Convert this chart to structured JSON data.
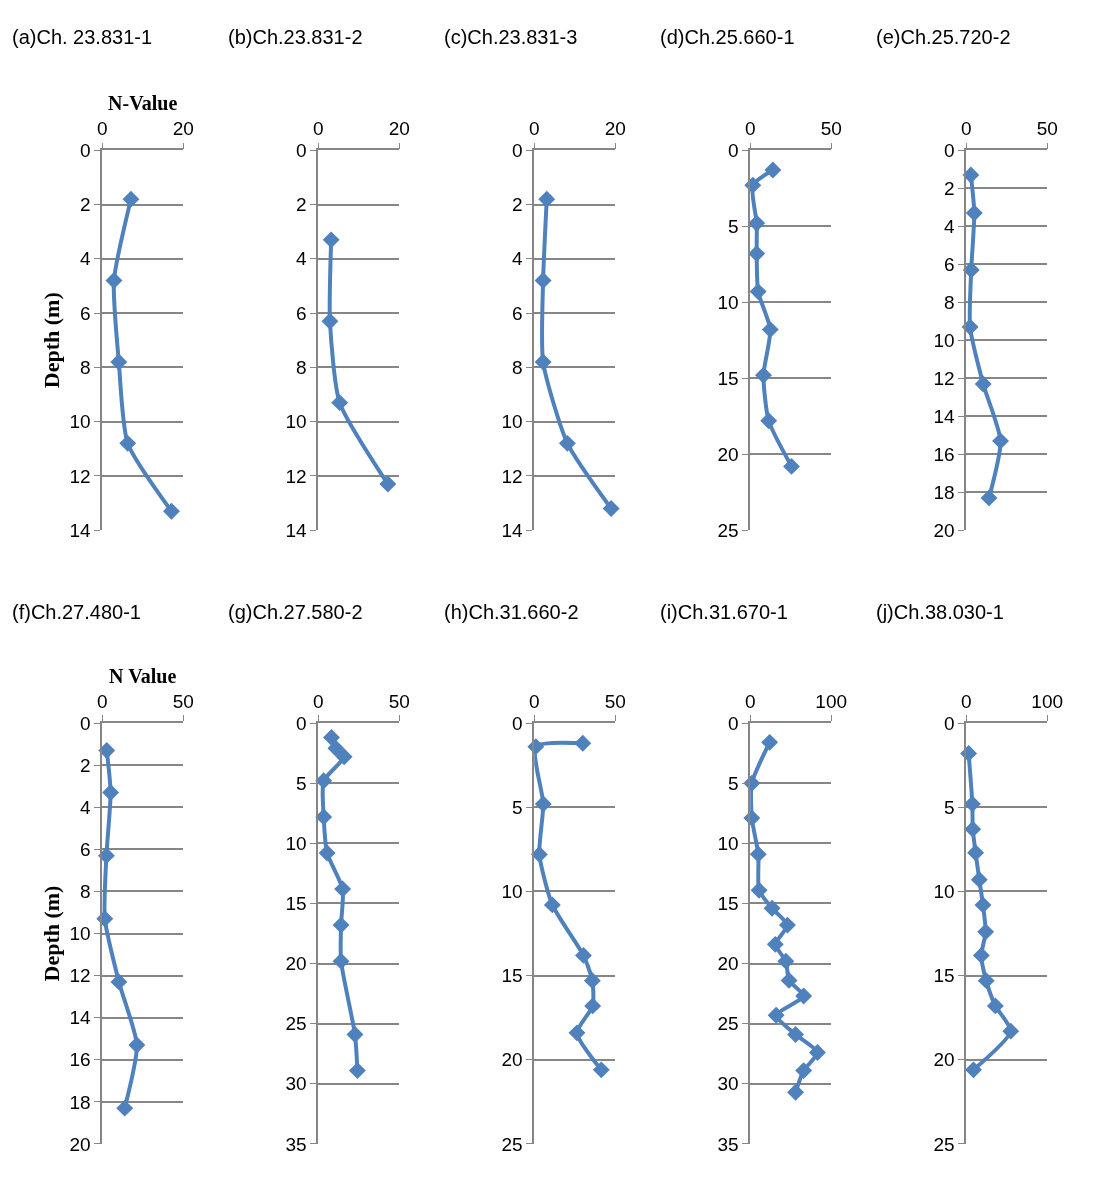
{
  "chart_data": [
    {
      "type": "line",
      "title": "(a)Ch. 23.831-1",
      "xlabel": "N-Value",
      "ylabel": "Depth (m)",
      "xlim": [
        0,
        20
      ],
      "xticks": [
        0,
        20
      ],
      "ylim": [
        14,
        0
      ],
      "yticks": [
        0,
        2,
        4,
        6,
        8,
        10,
        12,
        14
      ],
      "grid": "y",
      "marker": "diamond",
      "series": [
        {
          "color": "#4f81bd",
          "x": [
            7.1,
            2.9,
            4.1,
            6.3,
            17.1
          ],
          "values": [
            1.8,
            4.8,
            7.8,
            10.8,
            13.3
          ]
        }
      ]
    },
    {
      "type": "line",
      "title": "(b)Ch.23.831-2",
      "xlim": [
        0,
        20
      ],
      "xticks": [
        0,
        20
      ],
      "ylim": [
        14,
        0
      ],
      "yticks": [
        0,
        2,
        4,
        6,
        8,
        10,
        12,
        14
      ],
      "grid": "y",
      "marker": "diamond",
      "series": [
        {
          "color": "#4f81bd",
          "x": [
            3.2,
            2.9,
            5.3,
            17.2
          ],
          "values": [
            3.3,
            6.3,
            9.3,
            12.3
          ]
        }
      ]
    },
    {
      "type": "line",
      "title": "(c)Ch.23.831-3",
      "xlim": [
        0,
        20
      ],
      "xticks": [
        0,
        20
      ],
      "ylim": [
        14,
        0
      ],
      "yticks": [
        0,
        2,
        4,
        6,
        8,
        10,
        12,
        14
      ],
      "grid": "y",
      "marker": "diamond",
      "series": [
        {
          "color": "#4f81bd",
          "x": [
            3.1,
            2.2,
            2.2,
            8.2,
            19.0
          ],
          "values": [
            1.8,
            4.8,
            7.8,
            10.8,
            13.2
          ]
        }
      ]
    },
    {
      "type": "line",
      "title": "(d)Ch.25.660-1",
      "xlim": [
        0,
        50
      ],
      "xticks": [
        0,
        50
      ],
      "ylim": [
        25,
        0
      ],
      "yticks": [
        0,
        5,
        10,
        15,
        20,
        25
      ],
      "grid": "y",
      "marker": "diamond",
      "series": [
        {
          "color": "#4f81bd",
          "x": [
            14,
            1.6,
            4,
            4,
            4.9,
            12.4,
            8.2,
            11.4,
            25.5
          ],
          "values": [
            1.3,
            2.3,
            4.8,
            6.8,
            9.3,
            11.8,
            14.8,
            17.8,
            20.8
          ]
        }
      ]
    },
    {
      "type": "line",
      "title": "(e)Ch.25.720-2",
      "xlim": [
        0,
        50
      ],
      "xticks": [
        0,
        50
      ],
      "ylim": [
        20,
        0
      ],
      "yticks": [
        0,
        2,
        4,
        6,
        8,
        10,
        12,
        14,
        16,
        18,
        20
      ],
      "grid": "y",
      "marker": "diamond",
      "series": [
        {
          "color": "#4f81bd",
          "x": [
            2.9,
            5,
            3.1,
            2.4,
            10.5,
            21.2,
            14.1
          ],
          "values": [
            1.3,
            3.3,
            6.3,
            9.3,
            12.3,
            15.3,
            18.3
          ]
        }
      ]
    },
    {
      "type": "line",
      "title": "(f)Ch.27.480-1",
      "xlabel": "N Value",
      "ylabel": "Depth (m)",
      "xlim": [
        0,
        50
      ],
      "xticks": [
        0,
        50
      ],
      "ylim": [
        20,
        0
      ],
      "yticks": [
        0,
        2,
        4,
        6,
        8,
        10,
        12,
        14,
        16,
        18,
        20
      ],
      "grid": "y",
      "marker": "diamond",
      "series": [
        {
          "color": "#4f81bd",
          "x": [
            2.8,
            5.2,
            2.6,
            1.6,
            10.3,
            21.4,
            13.9
          ],
          "values": [
            1.3,
            3.3,
            6.3,
            9.3,
            12.3,
            15.3,
            18.3
          ]
        }
      ]
    },
    {
      "type": "line",
      "title": "(g)Ch.27.580-2",
      "xlim": [
        0,
        50
      ],
      "xticks": [
        0,
        50
      ],
      "ylim": [
        35,
        0
      ],
      "yticks": [
        0,
        5,
        10,
        15,
        20,
        25,
        30,
        35
      ],
      "grid": "y",
      "marker": "diamond",
      "series": [
        {
          "color": "#4f81bd",
          "x": [
            8.2,
            10.9,
            16,
            3.4,
            3.4,
            5.5,
            15.1,
            14.1,
            14.1,
            22.7,
            24.2
          ],
          "values": [
            1.2,
            2.1,
            2.8,
            4.8,
            7.8,
            10.8,
            13.8,
            16.8,
            19.8,
            25.9,
            28.9
          ]
        }
      ]
    },
    {
      "type": "line",
      "title": "(h)Ch.31.660-2",
      "xlim": [
        0,
        50
      ],
      "xticks": [
        0,
        50
      ],
      "ylim": [
        25,
        0
      ],
      "yticks": [
        0,
        5,
        10,
        15,
        20,
        25
      ],
      "grid": "y",
      "marker": "diamond",
      "series": [
        {
          "color": "#4f81bd",
          "x": [
            30,
            1,
            5.6,
            3.2,
            11.2,
            30.4,
            35.9,
            36.1,
            26.4,
            41.4
          ],
          "values": [
            1.2,
            1.4,
            4.8,
            7.8,
            10.8,
            13.8,
            15.3,
            16.8,
            18.4,
            20.6
          ]
        }
      ]
    },
    {
      "type": "line",
      "title": "(i)Ch.31.670-1",
      "xlim": [
        0,
        100
      ],
      "xticks": [
        0,
        100
      ],
      "ylim": [
        35,
        0
      ],
      "yticks": [
        0,
        5,
        10,
        15,
        20,
        25,
        30,
        35
      ],
      "grid": "y",
      "marker": "diamond",
      "series": [
        {
          "color": "#4f81bd",
          "x": [
            24,
            2,
            2,
            10,
            11,
            27,
            46,
            31,
            44,
            48,
            66,
            32,
            56,
            83,
            66,
            56
          ],
          "values": [
            1.6,
            5.0,
            7.9,
            10.9,
            13.9,
            15.4,
            16.8,
            18.4,
            19.8,
            21.4,
            22.7,
            24.3,
            25.9,
            27.4,
            28.9,
            30.7
          ]
        }
      ]
    },
    {
      "type": "line",
      "title": "(j)Ch.38.030-1",
      "xlim": [
        0,
        100
      ],
      "xticks": [
        0,
        100
      ],
      "ylim": [
        25,
        0
      ],
      "yticks": [
        0,
        5,
        10,
        15,
        20,
        25
      ],
      "grid": "y",
      "marker": "diamond",
      "series": [
        {
          "color": "#4f81bd",
          "x": [
            3,
            7.6,
            8.1,
            11.6,
            16.2,
            20.7,
            24,
            18.7,
            24.7,
            36,
            55,
            9
          ],
          "values": [
            1.8,
            4.8,
            6.3,
            7.7,
            9.3,
            10.8,
            12.4,
            13.8,
            15.3,
            16.8,
            18.3,
            20.6
          ]
        }
      ]
    }
  ]
}
